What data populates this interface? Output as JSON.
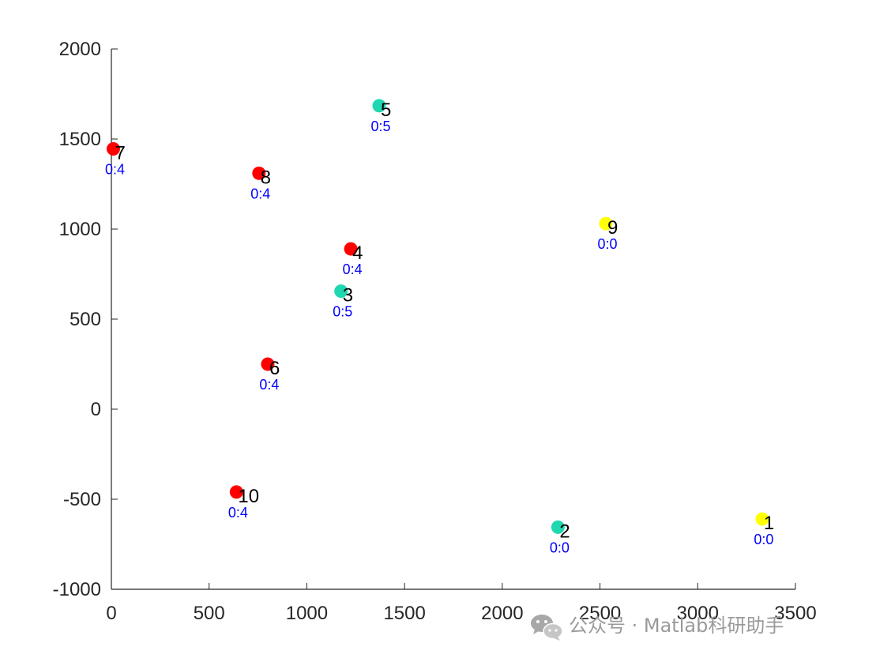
{
  "chart_data": {
    "type": "scatter",
    "title": "",
    "xlabel": "",
    "ylabel": "",
    "xlim": [
      0,
      3500
    ],
    "ylim": [
      -1000,
      2000
    ],
    "xticks": [
      0,
      500,
      1000,
      1500,
      2000,
      2500,
      3000,
      3500
    ],
    "yticks": [
      -1000,
      -500,
      0,
      500,
      1000,
      1500,
      2000
    ],
    "xtick_labels": [
      "0",
      "500",
      "1000",
      "1500",
      "2000",
      "2500",
      "3000",
      "3500"
    ],
    "ytick_labels": [
      "-1000",
      "-500",
      "0",
      "500",
      "1000",
      "1500",
      "2000"
    ],
    "grid": false,
    "points": [
      {
        "id": "1",
        "x": 3330,
        "y": -610,
        "note": "0:0",
        "color": "#ffff00"
      },
      {
        "id": "2",
        "x": 2285,
        "y": -655,
        "note": "0:0",
        "color": "#1fd7b0"
      },
      {
        "id": "3",
        "x": 1175,
        "y": 655,
        "note": "0:5",
        "color": "#1fd7b0"
      },
      {
        "id": "4",
        "x": 1225,
        "y": 890,
        "note": "0:4",
        "color": "#ff0000"
      },
      {
        "id": "5",
        "x": 1370,
        "y": 1685,
        "note": "0:5",
        "color": "#1fd7b0"
      },
      {
        "id": "6",
        "x": 800,
        "y": 250,
        "note": "0:4",
        "color": "#ff0000"
      },
      {
        "id": "7",
        "x": 10,
        "y": 1445,
        "note": "0:4",
        "color": "#ff0000"
      },
      {
        "id": "8",
        "x": 755,
        "y": 1310,
        "note": "0:4",
        "color": "#ff0000"
      },
      {
        "id": "9",
        "x": 2530,
        "y": 1030,
        "note": "0:0",
        "color": "#ffff00"
      },
      {
        "id": "10",
        "x": 640,
        "y": -460,
        "note": "0:4",
        "color": "#ff0000"
      }
    ]
  },
  "watermark": {
    "text": "公众号 · Matlab科研助手",
    "icon": "wechat-icon"
  }
}
